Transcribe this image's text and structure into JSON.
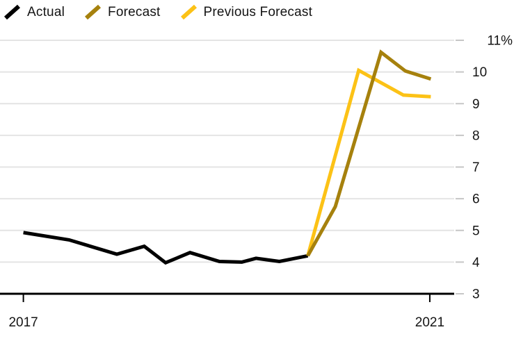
{
  "legend": [
    {
      "label": "Actual",
      "color": "#000000"
    },
    {
      "label": "Forecast",
      "color": "#A6810D"
    },
    {
      "label": "Previous Forecast",
      "color": "#FCC216"
    }
  ],
  "colors": {
    "background": "#ffffff",
    "gridline": "#E4E4E4",
    "axis": "#000000",
    "tick": "#C6C6C6",
    "text": "#141414"
  },
  "chart_data": {
    "type": "line",
    "title": "",
    "xlabel": "",
    "ylabel": "",
    "unit": "%",
    "grid": true,
    "legend_position": "top-left",
    "x_axis": {
      "range": [
        2016.77,
        2021.24
      ],
      "ticks": [
        2017,
        2021
      ],
      "labels": [
        "2017",
        "2021"
      ]
    },
    "y_axis": {
      "range": [
        3,
        11
      ],
      "ticks": [
        3,
        4,
        5,
        6,
        7,
        8,
        9,
        10,
        11
      ],
      "labels": [
        "3",
        "4",
        "5",
        "6",
        "7",
        "8",
        "9",
        "10",
        "11%"
      ]
    },
    "series": [
      {
        "name": "Actual",
        "color": "#000000",
        "x": [
          2017.0,
          2017.45,
          2017.92,
          2018.19,
          2018.4,
          2018.64,
          2018.93,
          2019.15,
          2019.29,
          2019.52,
          2019.8
        ],
        "y": [
          4.93,
          4.7,
          4.25,
          4.5,
          3.98,
          4.3,
          4.02,
          4.0,
          4.12,
          4.02,
          4.2
        ]
      },
      {
        "name": "Forecast",
        "color": "#A6810D",
        "x": [
          2019.8,
          2020.07,
          2020.52,
          2020.76,
          2021.01
        ],
        "y": [
          4.2,
          5.75,
          10.62,
          10.03,
          9.78
        ]
      },
      {
        "name": "Previous Forecast",
        "color": "#FCC216",
        "x": [
          2019.8,
          2020.3,
          2020.74,
          2021.01
        ],
        "y": [
          4.2,
          10.05,
          9.27,
          9.22
        ]
      }
    ]
  }
}
